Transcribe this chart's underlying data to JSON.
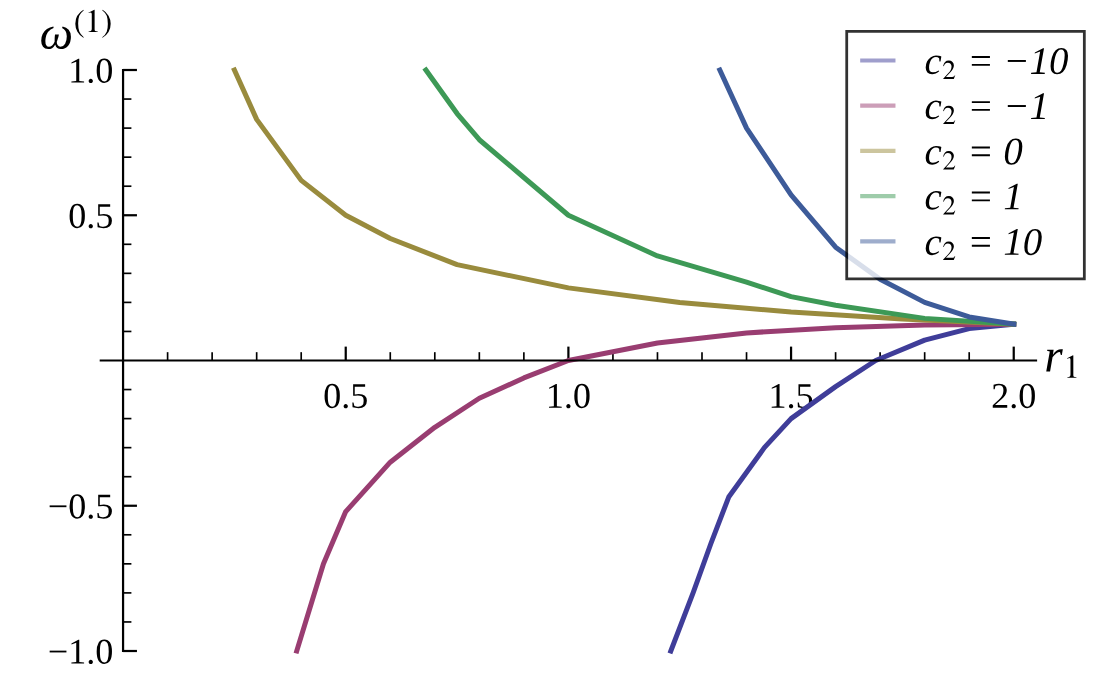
{
  "chart_data": {
    "type": "line",
    "xlabel": "r$_{1}$",
    "ylabel": "ω$^{(1)}$",
    "xlim": [
      -0.05,
      2.05
    ],
    "ylim": [
      -1.0,
      1.0
    ],
    "xticks": [
      {
        "value": 0.1,
        "label": null
      },
      {
        "value": 0.2,
        "label": null
      },
      {
        "value": 0.3,
        "label": null
      },
      {
        "value": 0.4,
        "label": null
      },
      {
        "value": 0.5,
        "label": "0.5"
      },
      {
        "value": 0.6,
        "label": null
      },
      {
        "value": 0.7,
        "label": null
      },
      {
        "value": 0.8,
        "label": null
      },
      {
        "value": 0.9,
        "label": null
      },
      {
        "value": 1.0,
        "label": "1.0"
      },
      {
        "value": 1.1,
        "label": null
      },
      {
        "value": 1.2,
        "label": null
      },
      {
        "value": 1.3,
        "label": null
      },
      {
        "value": 1.4,
        "label": null
      },
      {
        "value": 1.5,
        "label": "1.5"
      },
      {
        "value": 1.6,
        "label": null
      },
      {
        "value": 1.7,
        "label": null
      },
      {
        "value": 1.8,
        "label": null
      },
      {
        "value": 1.9,
        "label": null
      },
      {
        "value": 2.0,
        "label": "2.0"
      }
    ],
    "yticks": [
      {
        "value": -1.0,
        "label": "−1.0"
      },
      {
        "value": -0.9,
        "label": null
      },
      {
        "value": -0.8,
        "label": null
      },
      {
        "value": -0.7,
        "label": null
      },
      {
        "value": -0.6,
        "label": null
      },
      {
        "value": -0.5,
        "label": "−0.5"
      },
      {
        "value": -0.4,
        "label": null
      },
      {
        "value": -0.3,
        "label": null
      },
      {
        "value": -0.2,
        "label": null
      },
      {
        "value": -0.1,
        "label": null
      },
      {
        "value": 0.1,
        "label": null
      },
      {
        "value": 0.2,
        "label": null
      },
      {
        "value": 0.3,
        "label": null
      },
      {
        "value": 0.4,
        "label": null
      },
      {
        "value": 0.5,
        "label": "0.5"
      },
      {
        "value": 0.6,
        "label": null
      },
      {
        "value": 0.7,
        "label": null
      },
      {
        "value": 0.8,
        "label": null
      },
      {
        "value": 0.9,
        "label": null
      },
      {
        "value": 1.0,
        "label": "1.0"
      }
    ],
    "grid": false,
    "legend": "top right",
    "marker": "none",
    "line_style": "solid",
    "series": [
      {
        "name": "c$_{2}$ = −10",
        "color": "#3f3d99",
        "x": [
          1.23,
          1.28,
          1.32,
          1.36,
          1.44,
          1.5,
          1.6,
          1.69,
          1.8,
          1.9,
          2.0
        ],
        "values": [
          -1.0,
          -0.8,
          -0.63,
          -0.47,
          -0.3,
          -0.2,
          -0.09,
          0.0,
          0.07,
          0.11,
          0.125
        ]
      },
      {
        "name": "c$_{2}$ = −1",
        "color": "#993d71",
        "x": [
          0.39,
          0.45,
          0.5,
          0.6,
          0.7,
          0.8,
          0.9,
          1.0,
          1.2,
          1.4,
          1.6,
          1.8,
          2.0
        ],
        "values": [
          -1.0,
          -0.7,
          -0.52,
          -0.35,
          -0.23,
          -0.13,
          -0.06,
          0.0,
          0.06,
          0.095,
          0.113,
          0.122,
          0.125
        ]
      },
      {
        "name": "c$_{2}$ = 0",
        "color": "#998b3d",
        "x": [
          0.25,
          0.3,
          0.4,
          0.5,
          0.6,
          0.75,
          1.0,
          1.25,
          1.5,
          1.75,
          2.0
        ],
        "values": [
          1.0,
          0.83,
          0.62,
          0.5,
          0.42,
          0.33,
          0.25,
          0.2,
          0.167,
          0.143,
          0.125
        ]
      },
      {
        "name": "c$_{2}$ = 1",
        "color": "#3d9956",
        "x": [
          0.68,
          0.75,
          0.8,
          0.9,
          1.0,
          1.2,
          1.4,
          1.5,
          1.6,
          1.8,
          2.0
        ],
        "values": [
          1.0,
          0.85,
          0.76,
          0.63,
          0.5,
          0.36,
          0.27,
          0.22,
          0.19,
          0.145,
          0.125
        ]
      },
      {
        "name": "c$_{2}$ = 10",
        "color": "#3d5b99",
        "x": [
          1.34,
          1.4,
          1.5,
          1.6,
          1.7,
          1.8,
          1.9,
          2.0
        ],
        "values": [
          1.0,
          0.8,
          0.57,
          0.39,
          0.28,
          0.2,
          0.15,
          0.125
        ]
      }
    ]
  }
}
